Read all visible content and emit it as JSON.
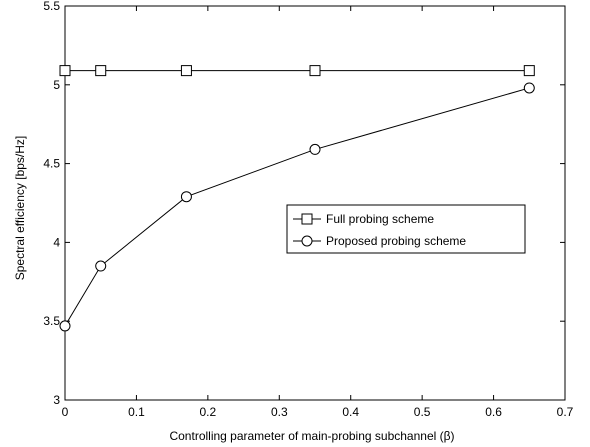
{
  "chart_data": {
    "type": "line",
    "xlabel": "Controlling parameter of main-probing subchannel (β)",
    "ylabel": "Spectral efficiency [bps/Hz]",
    "xlim": [
      0,
      0.7
    ],
    "ylim": [
      3,
      5.5
    ],
    "xticks": [
      "0",
      "0.1",
      "0.2",
      "0.3",
      "0.4",
      "0.5",
      "0.6",
      "0.7"
    ],
    "yticks": [
      "3",
      "3.5",
      "4",
      "4.5",
      "5",
      "5.5"
    ],
    "grid": false,
    "legend_position": "center-right",
    "series": [
      {
        "name": "Full probing scheme",
        "marker": "square",
        "x": [
          0,
          0.05,
          0.17,
          0.35,
          0.65
        ],
        "y": [
          5.09,
          5.09,
          5.09,
          5.09,
          5.09
        ]
      },
      {
        "name": "Proposed probing scheme",
        "marker": "circle",
        "x": [
          0,
          0.05,
          0.17,
          0.35,
          0.65
        ],
        "y": [
          3.47,
          3.85,
          4.29,
          4.59,
          4.98
        ]
      }
    ]
  }
}
